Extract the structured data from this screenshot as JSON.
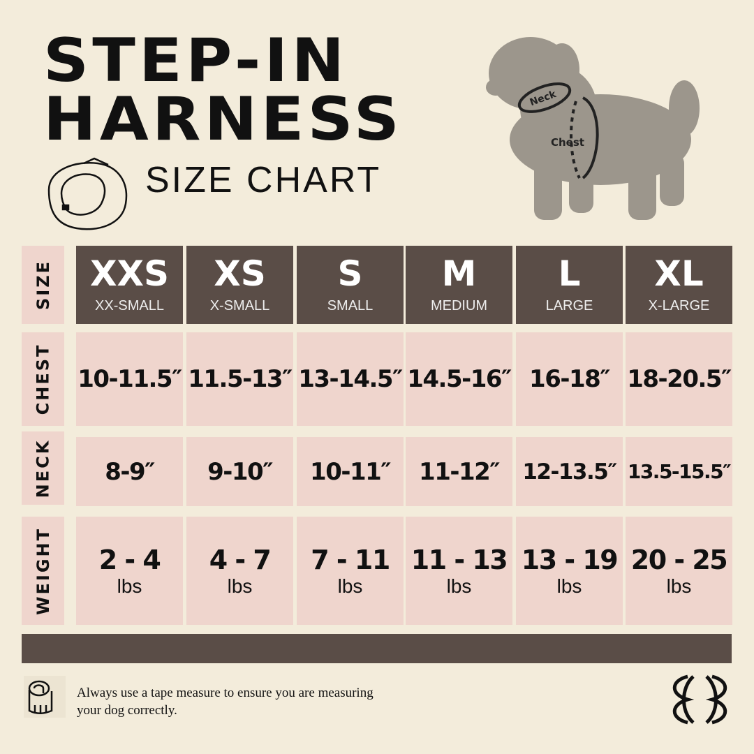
{
  "title": {
    "line1": "STEP-IN",
    "line2": "HARNESS",
    "subtitle": "SIZE CHART"
  },
  "dog": {
    "neck_label": "Neck",
    "chest_label": "Chest"
  },
  "row_labels": {
    "size": "SIZE",
    "chest": "CHEST",
    "neck": "NECK",
    "weight": "WEIGHT"
  },
  "sizes": [
    {
      "code": "XXS",
      "name": "XX-SMALL",
      "chest": "10-11.5″",
      "neck": "8-9″",
      "weight": "2 - 4",
      "unit": "lbs"
    },
    {
      "code": "XS",
      "name": "X-SMALL",
      "chest": "11.5-13″",
      "neck": "9-10″",
      "weight": "4 - 7",
      "unit": "lbs"
    },
    {
      "code": "S",
      "name": "SMALL",
      "chest": "13-14.5″",
      "neck": "10-11″",
      "weight": "7 - 11",
      "unit": "lbs"
    },
    {
      "code": "M",
      "name": "MEDIUM",
      "chest": "14.5-16″",
      "neck": "11-12″",
      "weight": "11 - 13",
      "unit": "lbs"
    },
    {
      "code": "L",
      "name": "LARGE",
      "chest": "16-18″",
      "neck": "12-13.5″",
      "weight": "13 - 19",
      "unit": "lbs"
    },
    {
      "code": "XL",
      "name": "X-LARGE",
      "chest": "18-20.5″",
      "neck": "13.5-15.5″",
      "weight": "20 - 25",
      "unit": "lbs"
    }
  ],
  "footer": {
    "note": "Always use a tape measure to ensure you are measuring your dog correctly."
  },
  "colors": {
    "background": "#f3ecdb",
    "header": "#5a4d47",
    "cell": "#efd5cd",
    "dog": "#9c968c"
  }
}
